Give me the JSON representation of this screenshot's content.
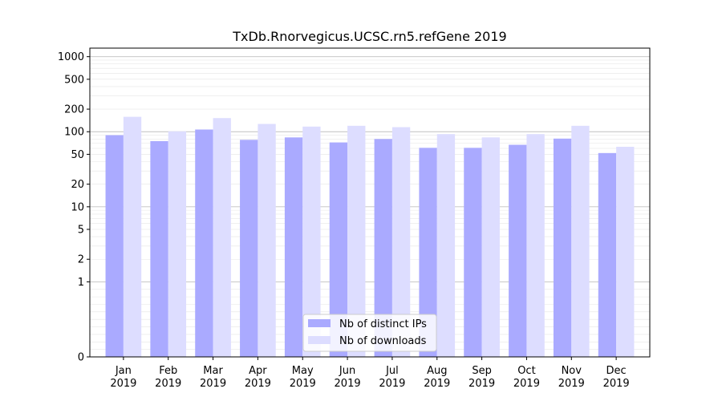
{
  "chart_data": {
    "type": "bar",
    "title": "TxDb.Rnorvegicus.UCSC.rn5.refGene 2019",
    "xlabel": "",
    "ylabel": "",
    "yscale": "symlog",
    "ylim": [
      0,
      1300
    ],
    "yticks": [
      "0",
      "1",
      "2",
      "5",
      "10",
      "20",
      "50",
      "100",
      "200",
      "500",
      "1000"
    ],
    "categories": [
      [
        "Jan",
        "2019"
      ],
      [
        "Feb",
        "2019"
      ],
      [
        "Mar",
        "2019"
      ],
      [
        "Apr",
        "2019"
      ],
      [
        "May",
        "2019"
      ],
      [
        "Jun",
        "2019"
      ],
      [
        "Jul",
        "2019"
      ],
      [
        "Aug",
        "2019"
      ],
      [
        "Sep",
        "2019"
      ],
      [
        "Oct",
        "2019"
      ],
      [
        "Nov",
        "2019"
      ],
      [
        "Dec",
        "2019"
      ]
    ],
    "series": [
      {
        "name": "Nb of distinct IPs",
        "color": "#aaaaff",
        "values": [
          90,
          75,
          107,
          78,
          84,
          72,
          80,
          61,
          61,
          67,
          81,
          52
        ]
      },
      {
        "name": "Nb of downloads",
        "color": "#ddddff",
        "values": [
          158,
          101,
          152,
          127,
          117,
          120,
          115,
          93,
          84,
          93,
          120,
          63
        ]
      }
    ],
    "legend_position": "lower-center",
    "grid": true
  }
}
